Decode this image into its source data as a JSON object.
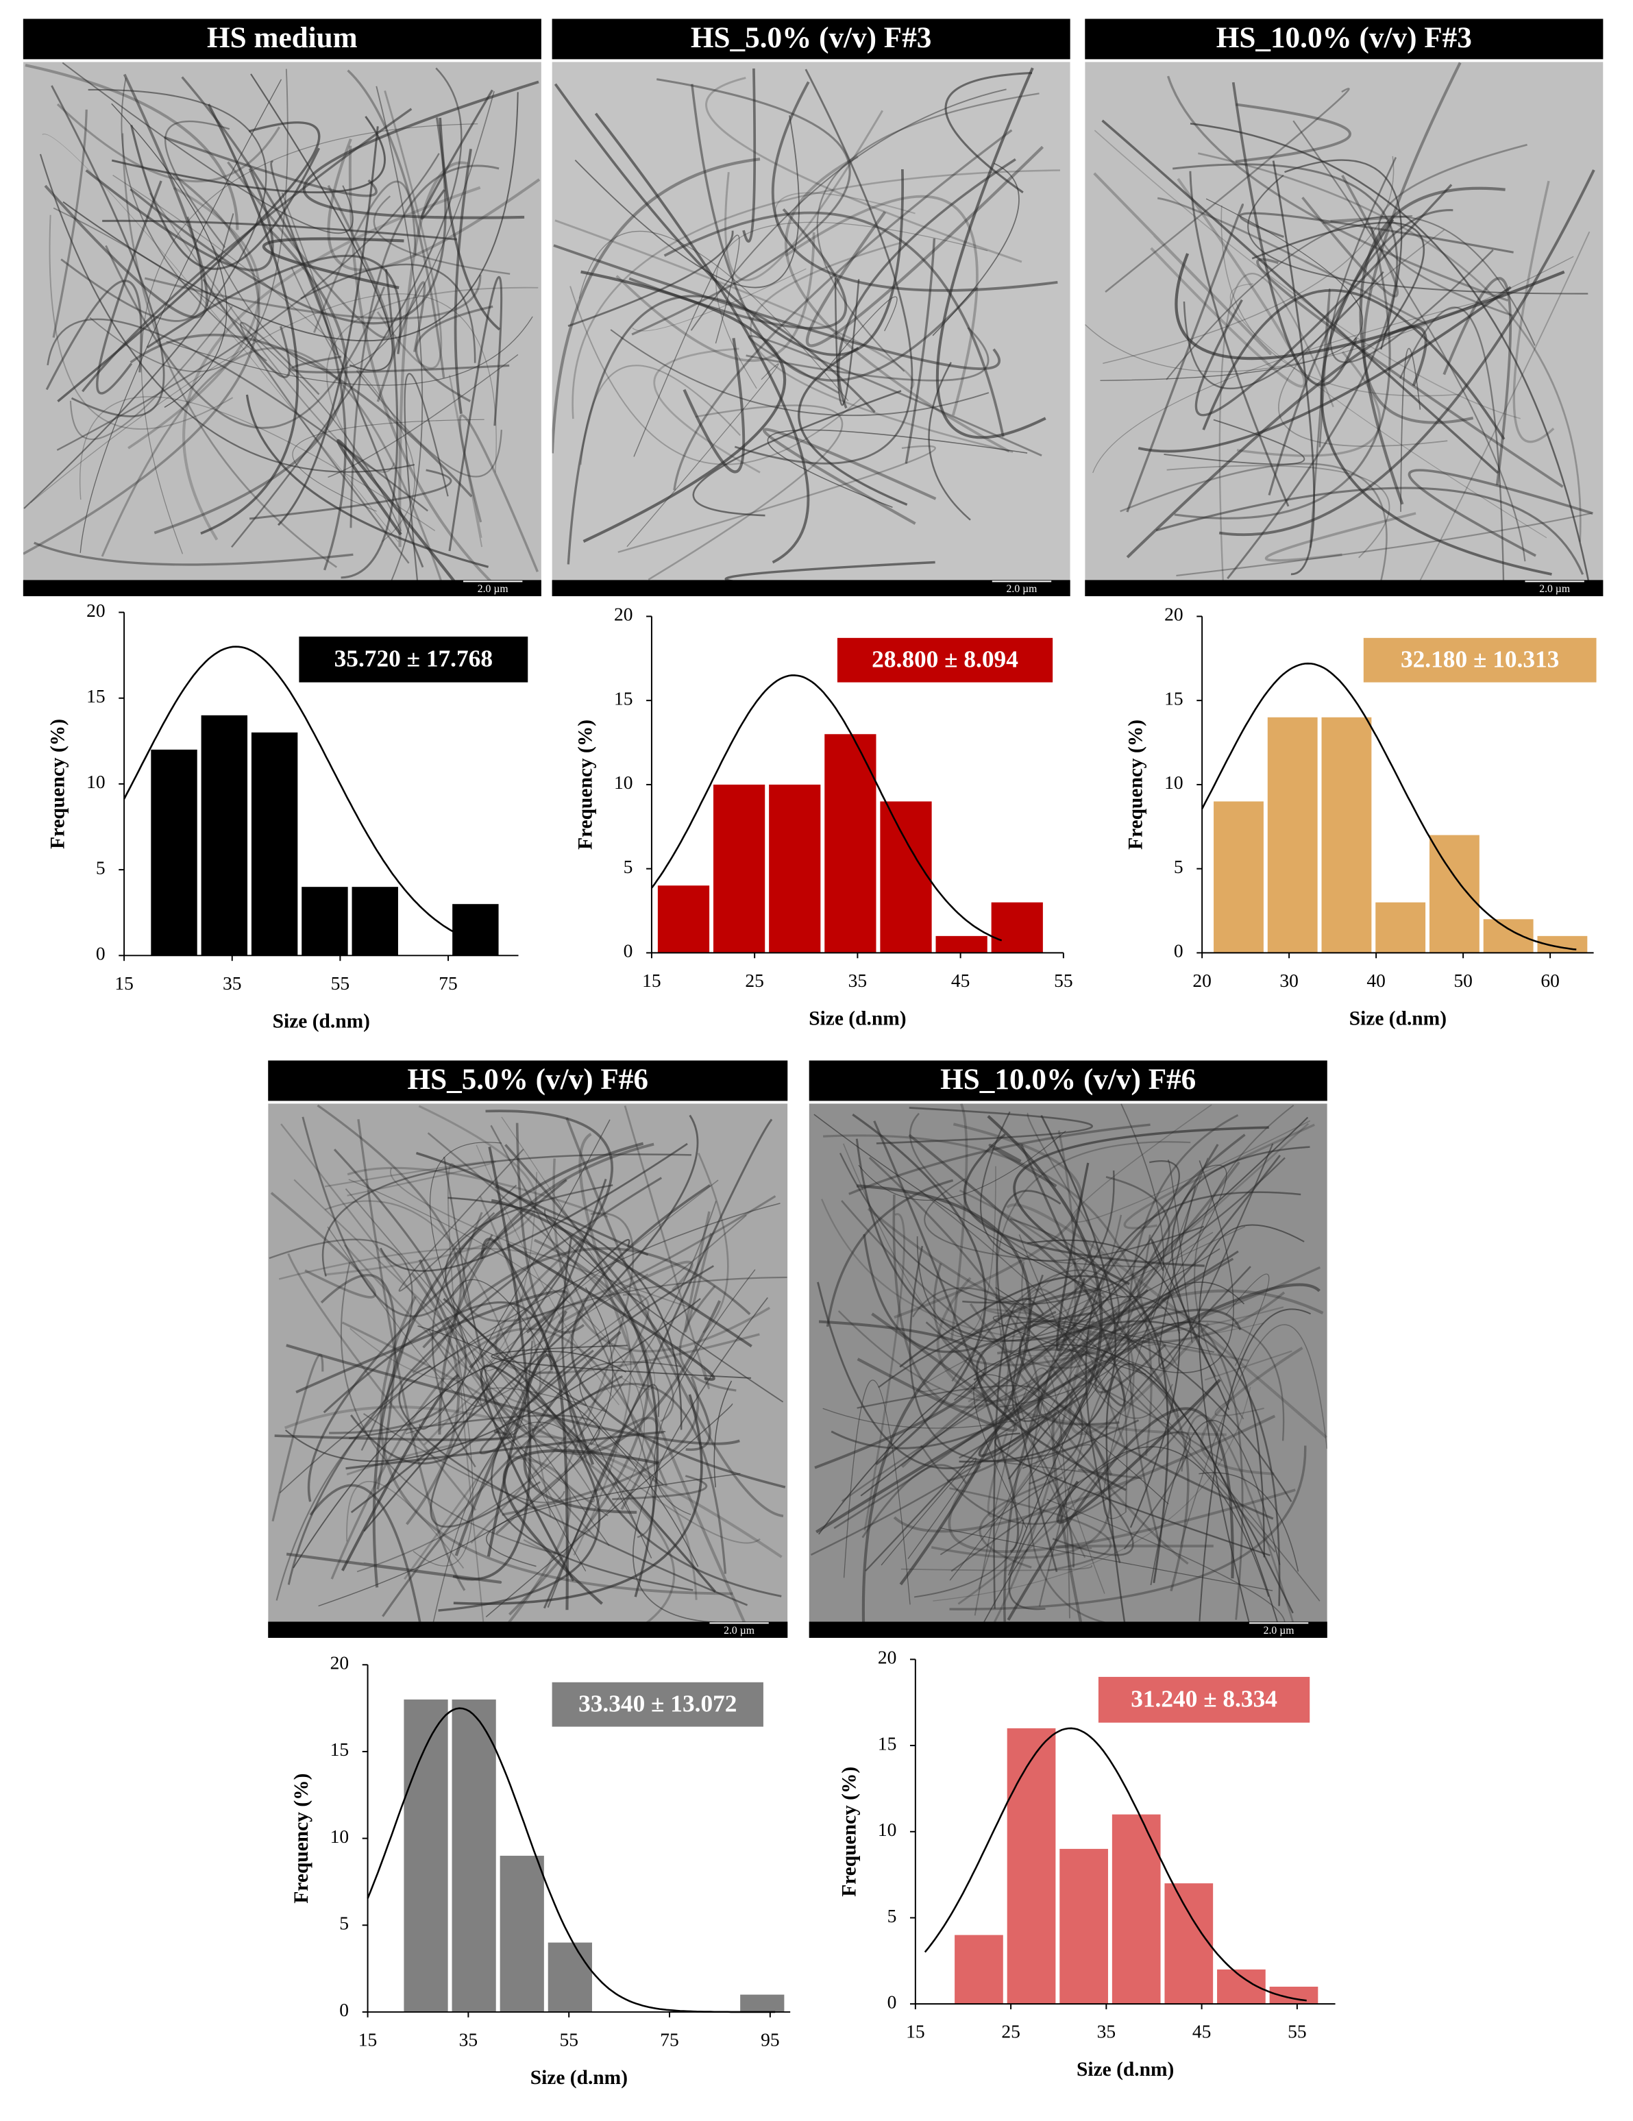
{
  "chart_data": [
    {
      "type": "histogram",
      "title": "HS medium",
      "scale_bar": "2.0 µm",
      "bins": [
        19.6,
        28.9,
        38.2,
        47.5,
        56.8,
        66.1,
        75.4,
        84.7
      ],
      "values": [
        12,
        14,
        13,
        4,
        4,
        0,
        3
      ],
      "color": "#000000",
      "xlim": [
        15,
        88
      ],
      "ylim": [
        0,
        20
      ],
      "xticks": [
        15,
        35,
        55,
        75
      ],
      "yticks": [
        0,
        5,
        10,
        15,
        20
      ],
      "xlabel": "Size (d.nm)",
      "ylabel": "Frequency (%)",
      "fit": {
        "label": "35.720 ± 17.768",
        "mean": 35.72,
        "sd": 17.768,
        "peak": 18,
        "range": [
          15,
          82
        ]
      }
    },
    {
      "type": "histogram",
      "title": "HS_5.0% (v/v) F#3",
      "scale_bar": "2.0 µm",
      "bins": [
        15.4,
        20.8,
        26.2,
        31.6,
        37,
        42.4,
        47.8,
        53.2
      ],
      "values": [
        4,
        10,
        10,
        13,
        9,
        1,
        3
      ],
      "color": "#c00000",
      "xlim": [
        15,
        55
      ],
      "ylim": [
        0,
        20
      ],
      "xticks": [
        15,
        25,
        35,
        45,
        55
      ],
      "yticks": [
        0,
        5,
        10,
        15,
        20
      ],
      "xlabel": "Size (d.nm)",
      "ylabel": "Frequency (%)",
      "fit": {
        "label": "28.800 ± 8.094",
        "mean": 28.8,
        "sd": 8.094,
        "peak": 16.5,
        "range": [
          15,
          49
        ]
      }
    },
    {
      "type": "histogram",
      "title": "HS_10.0% (v/v) F#3",
      "scale_bar": "2.0 µm",
      "bins": [
        21.1,
        27.3,
        33.5,
        39.7,
        45.9,
        52.1,
        58.3,
        64.5
      ],
      "values": [
        9,
        14,
        14,
        3,
        7,
        2,
        1
      ],
      "color": "#e0aa62",
      "xlim": [
        20,
        65
      ],
      "ylim": [
        0,
        20
      ],
      "xticks": [
        20,
        30,
        40,
        50,
        60
      ],
      "yticks": [
        0,
        5,
        10,
        15,
        20
      ],
      "xlabel": "Size (d.nm)",
      "ylabel": "Frequency (%)",
      "fit": {
        "label": "32.180 ± 10.313",
        "mean": 32.18,
        "sd": 10.313,
        "peak": 17.2,
        "range": [
          20,
          63
        ]
      }
    },
    {
      "type": "histogram",
      "title": "HS_5.0% (v/v) F#6",
      "scale_bar": "2.0 µm",
      "bins": [
        21.8,
        31.35,
        40.9,
        50.45,
        60,
        69.55,
        79.1,
        88.65,
        98.2
      ],
      "values": [
        18,
        18,
        9,
        4,
        0,
        0,
        0,
        1
      ],
      "color": "#808080",
      "xlim": [
        15,
        99
      ],
      "ylim": [
        0,
        20
      ],
      "xticks": [
        15,
        35,
        55,
        75,
        95
      ],
      "yticks": [
        0,
        5,
        10,
        15,
        20
      ],
      "xlabel": "Size (d.nm)",
      "ylabel": "Frequency (%)",
      "fit": {
        "label": "33.340 ± 13.072",
        "mean": 33.34,
        "sd": 13.072,
        "peak": 17.5,
        "range": [
          15,
          96
        ]
      }
    },
    {
      "type": "histogram",
      "title": "HS_10.0% (v/v) F#6",
      "scale_bar": "2.0 µm",
      "bins": [
        18.9,
        24.4,
        29.9,
        35.4,
        40.9,
        46.4,
        51.9,
        57.4
      ],
      "values": [
        4,
        16,
        9,
        11,
        7,
        2,
        1
      ],
      "color": "#e06666",
      "xlim": [
        15,
        59
      ],
      "ylim": [
        0,
        20
      ],
      "xticks": [
        15,
        25,
        35,
        45,
        55
      ],
      "yticks": [
        0,
        5,
        10,
        15,
        20
      ],
      "xlabel": "Size (d.nm)",
      "ylabel": "Frequency (%)",
      "fit": {
        "label": "31.240 ± 8.334",
        "mean": 31.24,
        "sd": 8.334,
        "peak": 16,
        "range": [
          16,
          56
        ]
      }
    }
  ]
}
